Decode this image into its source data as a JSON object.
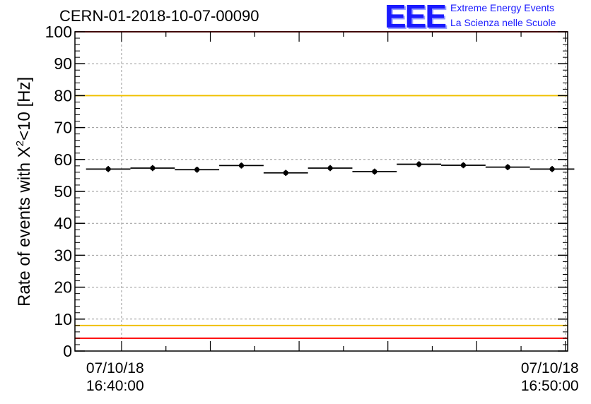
{
  "chart_data": {
    "type": "scatter",
    "title": "CERN-01-2018-10-07-00090",
    "ylabel_pre": "Rate of events with X",
    "ylabel_sup": "2",
    "ylabel_post": "<10 [Hz]",
    "ylim": [
      0,
      100
    ],
    "yticks": [
      "0",
      "10",
      "20",
      "30",
      "40",
      "50",
      "60",
      "70",
      "80",
      "90",
      "100"
    ],
    "xlim_minutes": [
      -1.05,
      10.05
    ],
    "x_tick_labels": [
      {
        "date": "07/10/18",
        "time": "16:40:00"
      },
      {
        "date": "07/10/18",
        "time": "16:50:00"
      }
    ],
    "points": [
      {
        "x": -0.3,
        "y": 57.0,
        "yerr": 0.5,
        "xerr": 0.5
      },
      {
        "x": 0.7,
        "y": 57.3,
        "yerr": 0.5,
        "xerr": 0.5
      },
      {
        "x": 1.7,
        "y": 56.8,
        "yerr": 0.5,
        "xerr": 0.5
      },
      {
        "x": 2.7,
        "y": 58.1,
        "yerr": 0.5,
        "xerr": 0.5
      },
      {
        "x": 3.7,
        "y": 55.8,
        "yerr": 0.5,
        "xerr": 0.5
      },
      {
        "x": 4.7,
        "y": 57.3,
        "yerr": 0.5,
        "xerr": 0.5
      },
      {
        "x": 5.7,
        "y": 56.2,
        "yerr": 0.5,
        "xerr": 0.5
      },
      {
        "x": 6.7,
        "y": 58.5,
        "yerr": 0.5,
        "xerr": 0.5
      },
      {
        "x": 7.7,
        "y": 58.2,
        "yerr": 0.5,
        "xerr": 0.5
      },
      {
        "x": 8.7,
        "y": 57.6,
        "yerr": 0.5,
        "xerr": 0.5
      },
      {
        "x": 9.7,
        "y": 57.0,
        "yerr": 0.5,
        "xerr": 0.5
      }
    ],
    "reference_lines": [
      {
        "y": 100,
        "color": "#ff0000"
      },
      {
        "y": 80,
        "color": "#f0c000"
      },
      {
        "y": 8,
        "color": "#f0c000"
      },
      {
        "y": 4,
        "color": "#ff0000"
      }
    ],
    "grid": true
  },
  "logo": {
    "mark": "EEE",
    "line1": "Extreme Energy Events",
    "line2": "La Scienza nelle Scuole"
  }
}
